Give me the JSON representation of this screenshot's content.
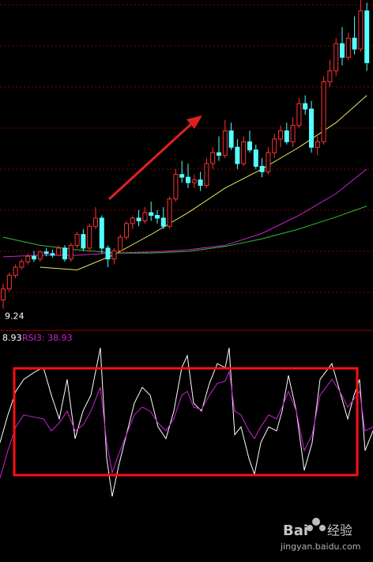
{
  "chart_data": [
    {
      "type": "candlestick",
      "open": [
        9.4,
        9.6,
        9.85,
        10.0,
        10.1,
        10.2,
        10.15,
        10.28,
        10.25,
        10.22,
        10.35,
        10.15,
        10.4,
        10.6,
        10.35,
        10.75,
        10.9,
        10.35,
        10.15,
        10.3,
        10.55,
        10.8,
        10.9,
        10.85,
        11.0,
        10.95,
        10.9,
        10.75,
        11.25,
        11.7,
        11.65,
        11.55,
        11.6,
        11.5,
        11.9,
        12.1,
        12.05,
        12.5,
        12.2,
        11.9,
        12.3,
        12.15,
        11.85,
        11.75,
        12.1,
        12.35,
        12.5,
        12.3,
        12.6,
        13.0,
        12.9,
        12.2,
        12.3,
        13.4,
        13.6,
        14.1,
        13.85,
        14.2,
        14.0,
        14.7
      ],
      "high": [
        9.7,
        9.9,
        10.05,
        10.15,
        10.25,
        10.3,
        10.3,
        10.35,
        10.32,
        10.4,
        10.4,
        10.45,
        10.65,
        10.7,
        10.8,
        11.1,
        10.95,
        10.4,
        10.35,
        10.6,
        10.85,
        10.95,
        11.05,
        11.1,
        11.2,
        11.05,
        11.1,
        11.3,
        11.8,
        11.95,
        11.9,
        11.7,
        11.75,
        12.0,
        12.2,
        12.4,
        12.7,
        12.65,
        12.35,
        12.4,
        12.5,
        12.25,
        12.0,
        12.2,
        12.45,
        12.6,
        12.65,
        12.75,
        13.1,
        13.15,
        13.05,
        12.4,
        13.5,
        13.8,
        14.2,
        14.4,
        14.3,
        14.6,
        14.9,
        14.85
      ],
      "low": [
        9.24,
        9.55,
        9.8,
        9.95,
        10.05,
        10.1,
        10.1,
        10.2,
        10.18,
        10.2,
        10.1,
        10.1,
        10.35,
        10.3,
        10.3,
        10.7,
        10.25,
        10.0,
        10.05,
        10.25,
        10.5,
        10.7,
        10.75,
        10.8,
        10.85,
        10.8,
        10.7,
        10.7,
        11.2,
        11.55,
        11.45,
        11.45,
        11.4,
        11.45,
        11.8,
        11.95,
        12.0,
        12.15,
        11.8,
        11.85,
        12.1,
        11.8,
        11.65,
        11.7,
        12.0,
        12.2,
        12.25,
        12.2,
        12.55,
        12.8,
        12.1,
        12.05,
        12.25,
        13.3,
        13.5,
        13.7,
        13.8,
        13.9,
        13.95,
        13.6
      ],
      "close": [
        9.6,
        9.85,
        10.0,
        10.1,
        10.2,
        10.15,
        10.28,
        10.25,
        10.22,
        10.35,
        10.15,
        10.4,
        10.6,
        10.35,
        10.75,
        10.9,
        10.35,
        10.15,
        10.3,
        10.55,
        10.8,
        10.9,
        10.85,
        11.0,
        10.95,
        10.9,
        10.75,
        11.25,
        11.7,
        11.65,
        11.55,
        11.6,
        11.5,
        11.9,
        12.1,
        12.05,
        12.5,
        12.2,
        11.9,
        12.3,
        12.15,
        11.85,
        11.75,
        12.1,
        12.35,
        12.5,
        12.3,
        12.6,
        13.0,
        12.9,
        12.2,
        12.3,
        13.4,
        13.6,
        14.1,
        13.85,
        14.2,
        14.0,
        14.7,
        13.75
      ],
      "up_color": "#ff3232",
      "down_color": "#54ffff",
      "ylim": [
        9.0,
        14.9
      ],
      "series": [
        {
          "color": "#e8e85a",
          "x": [
            0,
            6,
            12,
            18,
            24,
            30,
            36,
            42,
            48,
            54,
            59
          ],
          "values": [
            null,
            10.0,
            9.95,
            10.23,
            10.6,
            11.0,
            11.45,
            11.8,
            12.2,
            12.65,
            13.15
          ]
        },
        {
          "color": "#d020d0",
          "x": [
            0,
            6,
            12,
            18,
            24,
            30,
            36,
            42,
            48,
            54,
            59
          ],
          "values": [
            10.19,
            10.22,
            10.22,
            10.26,
            10.28,
            10.32,
            10.4,
            10.62,
            10.95,
            11.35,
            11.8
          ]
        },
        {
          "color": "#30c030",
          "x": [
            0,
            6,
            12,
            18,
            24,
            30,
            36,
            42,
            48,
            54,
            59
          ],
          "values": [
            10.55,
            10.4,
            10.32,
            10.26,
            10.26,
            10.29,
            10.38,
            10.52,
            10.7,
            10.92,
            11.12
          ]
        }
      ]
    },
    {
      "type": "line",
      "header": [
        "8.93",
        "RSI3: 38.93"
      ],
      "xlim": [
        0,
        472
      ],
      "ylim": [
        0,
        100
      ],
      "x": [
        0,
        10,
        20,
        30,
        45,
        55,
        65,
        75,
        85,
        95,
        105,
        115,
        127,
        135,
        142,
        150,
        160,
        170,
        180,
        190,
        200,
        210,
        220,
        230,
        237,
        245,
        255,
        265,
        275,
        285,
        290,
        297,
        305,
        315,
        322,
        330,
        340,
        350,
        357,
        365,
        375,
        385,
        395,
        405,
        420,
        430,
        440,
        448,
        455,
        462,
        472
      ],
      "series": [
        {
          "color": "#ffffff",
          "values": [
            38.1,
            54.8,
            69.0,
            76.2,
            81.0,
            83.3,
            66.7,
            52.4,
            76.2,
            40.5,
            57.1,
            66.7,
            95.2,
            28.6,
            5.7,
            23.8,
            42.9,
            61.9,
            71.4,
            66.7,
            47.6,
            40.5,
            57.1,
            83.3,
            90.5,
            61.9,
            57.1,
            73.8,
            85.7,
            83.3,
            95.2,
            42.9,
            47.6,
            28.6,
            19.0,
            38.1,
            47.6,
            45.2,
            57.1,
            78.6,
            57.1,
            21.4,
            38.1,
            76.2,
            85.7,
            69.0,
            52.4,
            66.7,
            76.2,
            33.3,
            45.2
          ]
        },
        {
          "color": "#d020d0",
          "values": [
            16.7,
            33.3,
            47.6,
            54.8,
            53.3,
            52.4,
            45.2,
            50.0,
            57.1,
            45.2,
            48.6,
            57.1,
            71.4,
            38.1,
            20.0,
            31.0,
            42.9,
            54.8,
            59.5,
            57.1,
            50.0,
            45.2,
            52.4,
            66.7,
            69.0,
            59.5,
            58.1,
            66.7,
            73.8,
            75.2,
            81.0,
            57.1,
            54.8,
            45.2,
            40.5,
            47.6,
            54.8,
            52.4,
            59.5,
            69.0,
            57.1,
            33.3,
            42.9,
            66.7,
            76.2,
            69.0,
            59.5,
            64.3,
            69.0,
            45.2,
            47.6
          ]
        }
      ]
    }
  ],
  "watermark": {
    "brand": "Bai",
    "product": "经验",
    "url": "jingyan.baidu.com"
  }
}
